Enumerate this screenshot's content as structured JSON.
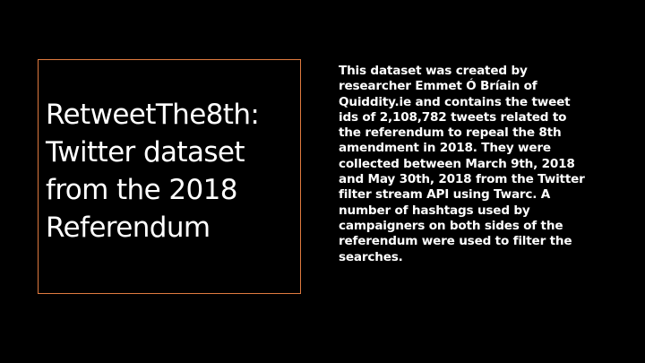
{
  "slide": {
    "accent_color": "#e07a3f",
    "background_color": "#000000",
    "title": {
      "lines": [
        "RetweetThe8th:",
        "Twitter dataset",
        "from the 2018",
        "Referendum"
      ]
    },
    "body": {
      "lines": [
        "This dataset was created by",
        "researcher Emmet Ó Bríain of",
        "Quiddity.ie and contains the tweet",
        "ids of 2,108,782 tweets related to",
        "the referendum to repeal the 8th",
        "amendment in 2018. They were",
        "collected between March 9th, 2018",
        "and May 30th, 2018 from the Twitter",
        "filter stream API using Twarc. A",
        "number of hashtags used by",
        "campaigners on both sides of the",
        "referendum were used to filter the",
        "searches."
      ]
    }
  }
}
